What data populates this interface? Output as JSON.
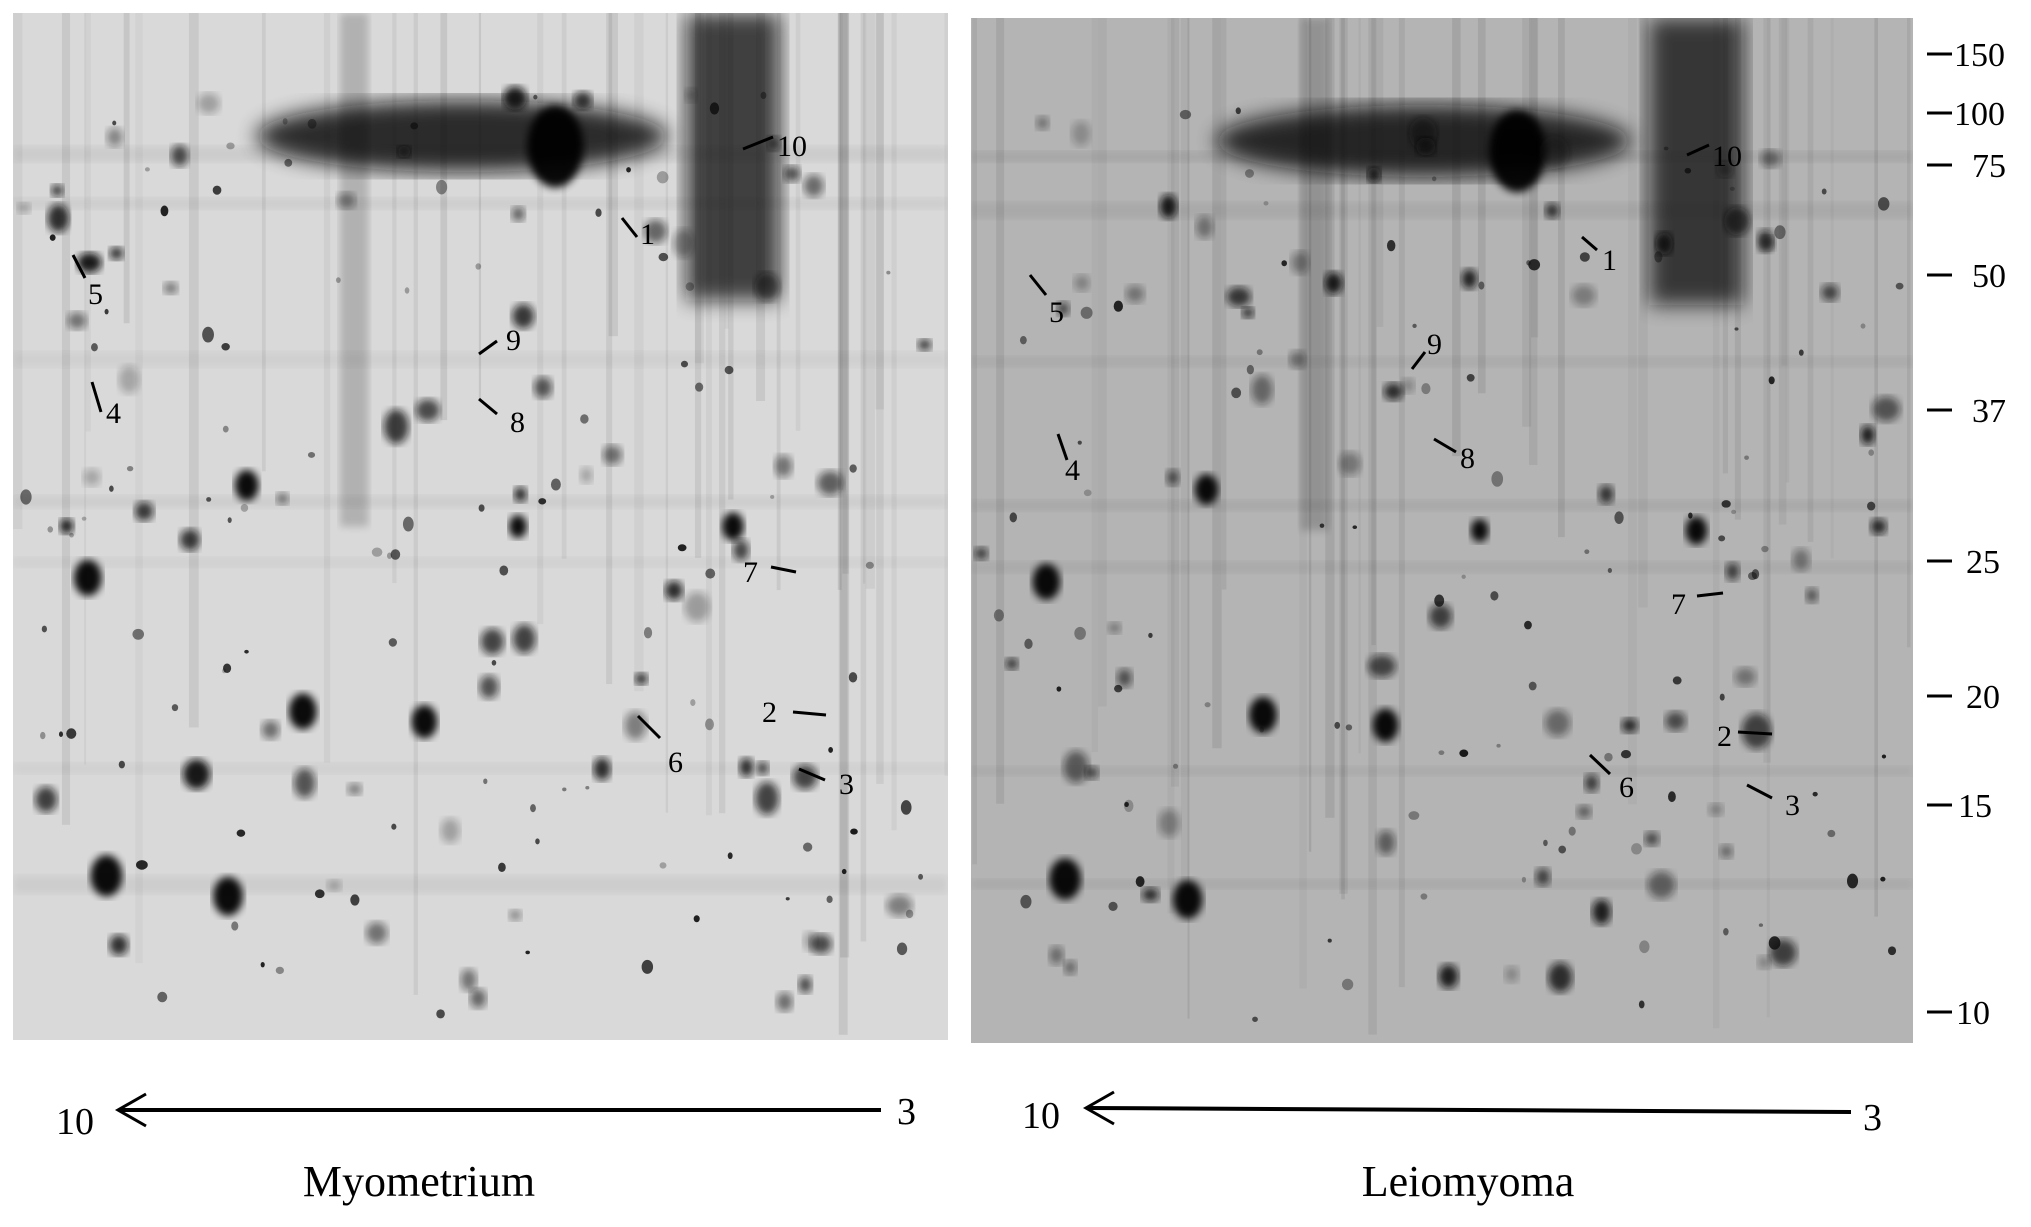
{
  "panels": [
    {
      "title": "Myometrium",
      "ph_basic": "10",
      "ph_acidic": "3",
      "spots": [
        "1",
        "10",
        "5",
        "9",
        "4",
        "8",
        "7",
        "2",
        "6",
        "3"
      ]
    },
    {
      "title": "Leiomyoma",
      "ph_basic": "10",
      "ph_acidic": "3",
      "spots": [
        "10",
        "1",
        "5",
        "9",
        "8",
        "4",
        "7",
        "2",
        "6",
        "3"
      ]
    }
  ],
  "mw_markers": [
    "150",
    "100",
    "75",
    "50",
    "37",
    "25",
    "20",
    "15",
    "10"
  ],
  "colors": {
    "gel_left_bg": "#d9d9d9",
    "gel_right_bg": "#b4b4b4",
    "spot": "#111111"
  }
}
